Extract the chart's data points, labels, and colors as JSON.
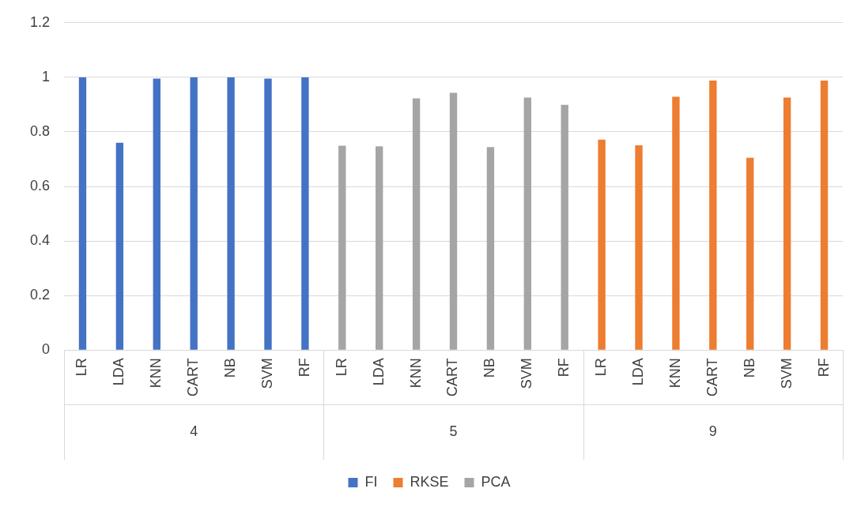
{
  "chart_data": {
    "type": "bar",
    "categories": [
      "LR",
      "LDA",
      "KNN",
      "CART",
      "NB",
      "SVM",
      "RF",
      "LR",
      "LDA",
      "KNN",
      "CART",
      "NB",
      "SVM",
      "RF",
      "LR",
      "LDA",
      "KNN",
      "CART",
      "NB",
      "SVM",
      "RF"
    ],
    "series": [
      {
        "name": "FI",
        "color": "#4472c4",
        "values": [
          1,
          0.76,
          0.995,
          1,
          1,
          0.995,
          1,
          null,
          null,
          null,
          null,
          null,
          null,
          null,
          null,
          null,
          null,
          null,
          null,
          null,
          null
        ]
      },
      {
        "name": "RKSE",
        "color": "#ed7d31",
        "values": [
          null,
          null,
          null,
          null,
          null,
          null,
          null,
          null,
          null,
          null,
          null,
          null,
          null,
          null,
          0.772,
          0.751,
          0.929,
          0.988,
          0.705,
          0.926,
          0.988
        ]
      },
      {
        "name": "PCA",
        "color": "#a5a5a5",
        "values": [
          null,
          null,
          null,
          null,
          null,
          null,
          null,
          0.749,
          0.747,
          0.923,
          0.943,
          0.744,
          0.926,
          0.899,
          null,
          null,
          null,
          null,
          null,
          null,
          null
        ]
      }
    ],
    "annotations": [
      "4",
      "5",
      "9"
    ],
    "ylim": [
      0,
      1.2
    ],
    "yticks": [
      0,
      0.2,
      0.4,
      0.6,
      0.8,
      1,
      1.2
    ],
    "grid": "y",
    "legend": "bottom"
  }
}
